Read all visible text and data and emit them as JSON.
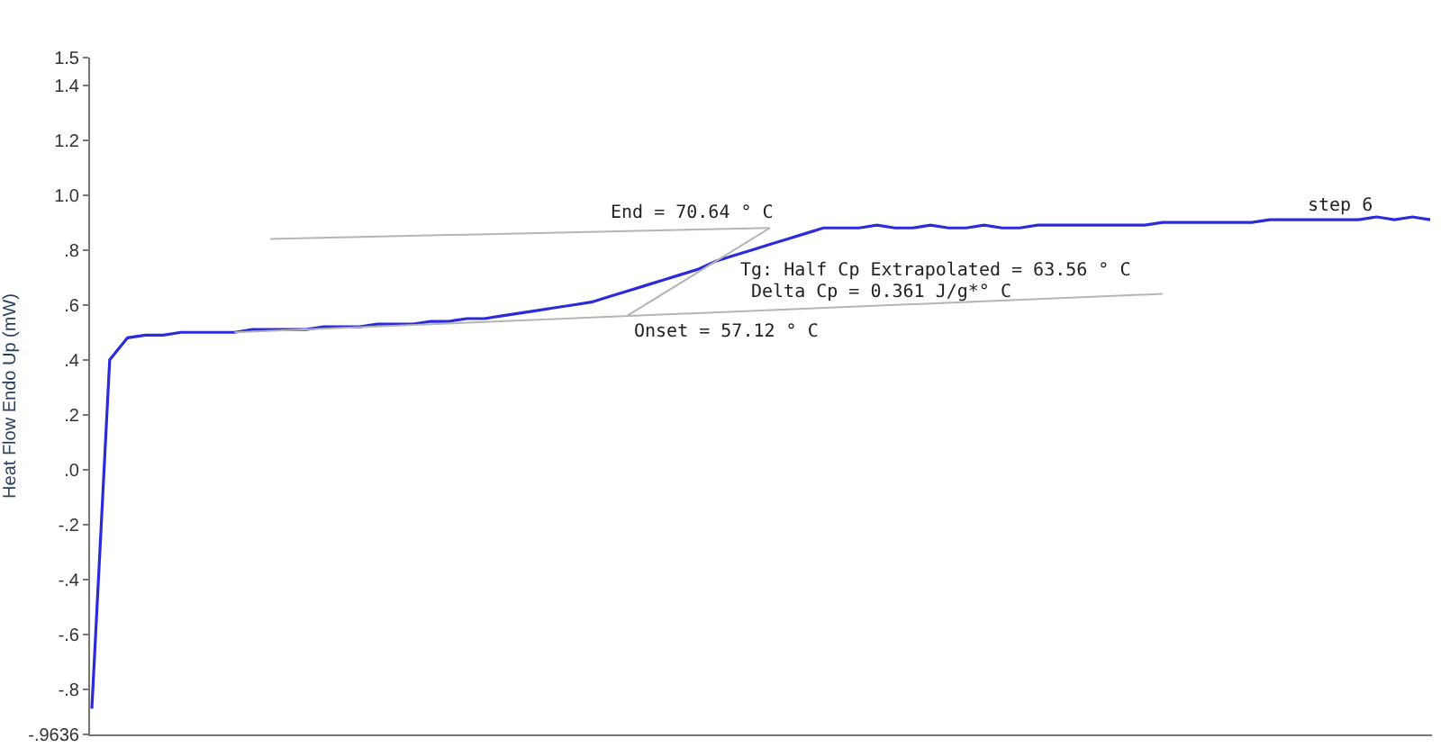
{
  "chart_data": {
    "type": "line",
    "ylabel": "Heat Flow Endo Up (mW)",
    "categories": [
      null,
      null,
      null,
      null,
      null,
      null,
      null,
      null,
      null,
      null,
      null,
      null,
      null,
      null,
      null,
      null,
      null,
      null,
      null,
      null,
      null,
      null,
      null,
      null,
      null,
      null,
      null,
      null,
      null,
      null,
      null,
      null,
      null,
      null,
      null,
      null,
      null,
      null,
      null,
      null,
      null,
      null,
      null,
      null,
      null,
      null,
      null,
      null,
      null,
      null,
      null,
      null,
      null,
      null,
      null,
      null,
      null,
      null,
      null,
      null,
      null,
      null,
      null,
      null,
      null,
      null,
      null,
      null,
      null,
      null,
      null,
      null,
      null,
      null,
      null,
      null
    ],
    "series": [
      {
        "color": "#2b2bdc",
        "values": [
          -0.87,
          0.4,
          0.48,
          0.49,
          0.49,
          0.5,
          0.5,
          0.5,
          0.5,
          0.51,
          0.51,
          0.51,
          0.51,
          0.52,
          0.52,
          0.52,
          0.53,
          0.53,
          0.53,
          0.54,
          0.54,
          0.55,
          0.55,
          0.56,
          0.57,
          0.58,
          0.59,
          0.6,
          0.61,
          0.63,
          0.65,
          0.67,
          0.69,
          0.71,
          0.73,
          0.76,
          0.78,
          0.8,
          0.82,
          0.84,
          0.86,
          0.88,
          0.88,
          0.88,
          0.89,
          0.88,
          0.88,
          0.89,
          0.88,
          0.88,
          0.89,
          0.88,
          0.88,
          0.89,
          0.89,
          0.89,
          0.89,
          0.89,
          0.89,
          0.89,
          0.9,
          0.9,
          0.9,
          0.9,
          0.9,
          0.9,
          0.91,
          0.91,
          0.91,
          0.91,
          0.91,
          0.91,
          0.92,
          0.91,
          0.92,
          0.91
        ]
      },
      {
        "type": "line",
        "color": "#b4b4b4",
        "values": [
          null,
          null,
          null,
          null,
          null,
          null,
          null,
          null,
          null,
          null,
          0.84,
          null,
          null,
          null,
          null,
          null,
          null,
          null,
          null,
          null,
          null,
          null,
          null,
          null,
          null,
          null,
          null,
          null,
          null,
          null,
          null,
          null,
          null,
          null,
          null,
          null,
          null,
          null,
          0.88,
          null,
          null,
          null,
          null,
          null,
          null,
          null,
          null,
          null,
          null,
          null,
          null,
          null,
          null,
          null,
          null,
          null,
          null,
          null,
          null,
          null,
          null,
          null,
          null,
          null,
          null,
          null,
          null,
          null,
          null,
          null,
          null,
          null,
          null,
          null,
          null,
          null
        ]
      },
      {
        "type": "line",
        "color": "#b4b4b4",
        "values": [
          null,
          null,
          null,
          null,
          null,
          null,
          null,
          null,
          0.5,
          null,
          null,
          null,
          null,
          null,
          null,
          null,
          null,
          null,
          null,
          null,
          null,
          null,
          null,
          null,
          null,
          null,
          null,
          null,
          null,
          null,
          null,
          null,
          null,
          null,
          null,
          null,
          null,
          null,
          null,
          null,
          null,
          null,
          null,
          null,
          null,
          null,
          null,
          null,
          null,
          null,
          null,
          null,
          null,
          null,
          null,
          null,
          null,
          null,
          null,
          null,
          0.64,
          null,
          null,
          null,
          null,
          null,
          null,
          null,
          null,
          null,
          null,
          null,
          null,
          null,
          null,
          null
        ]
      },
      {
        "type": "line",
        "color": "#b4b4b4",
        "values": [
          null,
          null,
          null,
          null,
          null,
          null,
          null,
          null,
          null,
          null,
          null,
          null,
          null,
          null,
          null,
          null,
          null,
          null,
          null,
          null,
          null,
          null,
          null,
          null,
          null,
          null,
          null,
          null,
          null,
          null,
          0.56,
          null,
          null,
          null,
          null,
          null,
          null,
          null,
          0.88,
          null,
          null,
          null,
          null,
          null,
          null,
          null,
          null,
          null,
          null,
          null,
          null,
          null,
          null,
          null,
          null,
          null,
          null,
          null,
          null,
          null,
          null,
          null,
          null,
          null,
          null,
          null,
          null,
          null,
          null,
          null,
          null,
          null,
          null,
          null,
          null,
          null
        ]
      }
    ],
    "ylim": [
      -0.9636,
      1.5
    ],
    "yticks": [
      {
        "value": -0.9636,
        "label": "-.9636"
      },
      {
        "value": -0.8,
        "label": "-.8"
      },
      {
        "value": -0.6,
        "label": "-.6"
      },
      {
        "value": -0.4,
        "label": "-.4"
      },
      {
        "value": -0.2,
        "label": "-.2"
      },
      {
        "value": 0,
        "label": ".0"
      },
      {
        "value": 0.2,
        "label": ".2"
      },
      {
        "value": 0.4,
        "label": ".4"
      },
      {
        "value": 0.6,
        "label": ".6"
      },
      {
        "value": 0.8,
        "label": ".8"
      },
      {
        "value": 1.0,
        "label": "1.0"
      },
      1.2,
      1.4,
      1.5
    ],
    "annotations": [
      "End = 70.64 ° C",
      "Tg: Half Cp Extrapolated = 63.56 ° C",
      "Delta Cp = 0.361 J/g*° C",
      "Onset = 57.12 ° C",
      "step 6"
    ],
    "tick_labels": "y",
    "marker": "none",
    "line_style": "solid"
  }
}
